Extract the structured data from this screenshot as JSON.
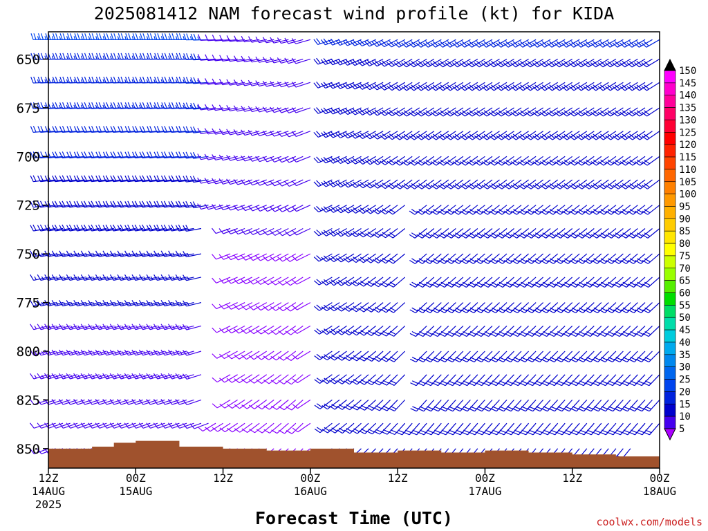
{
  "chart_data": {
    "type": "wind-barb profile",
    "title": "2025081412 NAM forecast wind profile (kt) for KIDA",
    "xlabel": "Forecast Time (UTC)",
    "ylabel": "",
    "credit": "coolwx.com/models",
    "y_axis": {
      "ticks": [
        650,
        675,
        700,
        725,
        750,
        775,
        800,
        825,
        850
      ],
      "range": [
        636,
        860
      ],
      "inverted": true
    },
    "x_axis": {
      "range": [
        0,
        84
      ],
      "unit": "forecast hour",
      "ticks": [
        {
          "hour": 0,
          "line1": "12Z",
          "line2": "14AUG",
          "line3": "2025"
        },
        {
          "hour": 12,
          "line1": "00Z",
          "line2": "15AUG",
          "line3": ""
        },
        {
          "hour": 24,
          "line1": "12Z",
          "line2": "",
          "line3": ""
        },
        {
          "hour": 36,
          "line1": "00Z",
          "line2": "16AUG",
          "line3": ""
        },
        {
          "hour": 48,
          "line1": "12Z",
          "line2": "",
          "line3": ""
        },
        {
          "hour": 60,
          "line1": "00Z",
          "line2": "17AUG",
          "line3": ""
        },
        {
          "hour": 72,
          "line1": "12Z",
          "line2": "",
          "line3": ""
        },
        {
          "hour": 84,
          "line1": "00Z",
          "line2": "18AUG",
          "line3": ""
        }
      ]
    },
    "colorbar": {
      "levels": [
        150,
        145,
        140,
        135,
        130,
        125,
        120,
        115,
        110,
        105,
        100,
        95,
        90,
        85,
        80,
        75,
        70,
        65,
        60,
        55,
        50,
        45,
        40,
        35,
        30,
        25,
        20,
        15,
        10,
        5
      ],
      "colors": [
        "#ff00ff",
        "#ff00cc",
        "#ff0099",
        "#ff0066",
        "#ff0033",
        "#ff0000",
        "#ff2200",
        "#ff4400",
        "#ff6600",
        "#ff8000",
        "#ff9900",
        "#ffb000",
        "#ffcc00",
        "#ffe600",
        "#ffff00",
        "#ccff00",
        "#99ff00",
        "#55ee00",
        "#00dd00",
        "#00dd66",
        "#00ddaa",
        "#00ccdd",
        "#00aaee",
        "#0088ee",
        "#0066ee",
        "#0044ee",
        "#0022dd",
        "#0000cc",
        "#4400ee",
        "#8800ff"
      ],
      "top_arrow_color": "#000000",
      "bottom_arrow_color": "#aa00ff"
    },
    "terrain": {
      "color": "#a0522d",
      "surface_pressure": [
        {
          "hour": 0,
          "p": 850
        },
        {
          "hour": 6,
          "p": 849
        },
        {
          "hour": 9,
          "p": 847
        },
        {
          "hour": 12,
          "p": 846
        },
        {
          "hour": 18,
          "p": 849
        },
        {
          "hour": 24,
          "p": 850
        },
        {
          "hour": 30,
          "p": 851
        },
        {
          "hour": 36,
          "p": 850
        },
        {
          "hour": 42,
          "p": 852
        },
        {
          "hour": 48,
          "p": 851
        },
        {
          "hour": 54,
          "p": 852
        },
        {
          "hour": 60,
          "p": 851
        },
        {
          "hour": 66,
          "p": 852
        },
        {
          "hour": 72,
          "p": 853
        },
        {
          "hour": 78,
          "p": 854
        },
        {
          "hour": 84,
          "p": 851
        }
      ]
    },
    "barb_field": {
      "hours": [
        0,
        1,
        2,
        3,
        4,
        5,
        6,
        7,
        8,
        9,
        10,
        11,
        12,
        13,
        14,
        15,
        16,
        17,
        18,
        19,
        20,
        21,
        22,
        23,
        24,
        25,
        26,
        27,
        28,
        29,
        30,
        31,
        32,
        33,
        34,
        35,
        36,
        37,
        38,
        39,
        40,
        41,
        42,
        43,
        44,
        45,
        46,
        47,
        48,
        49,
        50,
        51,
        52,
        53,
        54,
        55,
        56,
        57,
        58,
        59,
        60,
        61,
        62,
        63,
        64,
        65,
        66,
        67,
        68,
        69,
        70,
        71,
        72,
        73,
        74,
        75,
        76,
        77,
        78,
        79,
        80,
        81,
        82,
        83,
        84
      ],
      "levels": [
        640,
        650,
        662,
        675,
        687,
        700,
        712,
        725,
        737,
        750,
        762,
        775,
        787,
        800,
        812,
        825,
        837,
        850
      ],
      "speed_kt": {
        "upper_early": 25,
        "lower_early": 10,
        "mid_gap": 8,
        "late_upper": 20,
        "late_lower": 18
      },
      "direction_deg": {
        "early": 270,
        "late": 240
      },
      "calm_gaps": [
        {
          "hours": [
            22,
            24
          ],
          "levels": [
            737,
            825
          ]
        },
        {
          "hours": [
            37,
            38
          ],
          "levels": [
            640,
            850
          ]
        },
        {
          "hours": [
            50,
            51
          ],
          "levels": [
            725,
            825
          ]
        }
      ]
    }
  }
}
